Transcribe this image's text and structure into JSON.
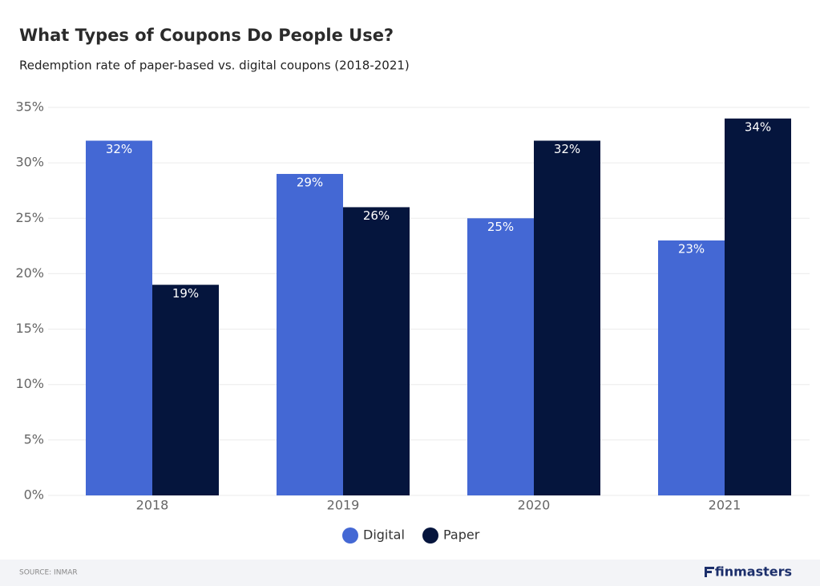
{
  "chart_data": {
    "type": "bar",
    "title": "What Types of Coupons Do People Use?",
    "subtitle": "Redemption rate of paper-based vs. digital coupons (2018-2021)",
    "categories": [
      "2018",
      "2019",
      "2020",
      "2021"
    ],
    "series": [
      {
        "name": "Digital",
        "color": "#4468d4",
        "values": [
          32,
          29,
          25,
          23
        ],
        "value_labels": [
          "32%",
          "29%",
          "25%",
          "23%"
        ]
      },
      {
        "name": "Paper",
        "color": "#05153d",
        "values": [
          19,
          26,
          32,
          34
        ],
        "value_labels": [
          "19%",
          "26%",
          "32%",
          "34%"
        ]
      }
    ],
    "ylim": [
      0,
      35
    ],
    "yticks": [
      {
        "value": 0,
        "label": "0%"
      },
      {
        "value": 5,
        "label": "5%"
      },
      {
        "value": 10,
        "label": "10%"
      },
      {
        "value": 15,
        "label": "15%"
      },
      {
        "value": 20,
        "label": "20%"
      },
      {
        "value": 25,
        "label": "25%"
      },
      {
        "value": 30,
        "label": "30%"
      },
      {
        "value": 35,
        "label": "35%"
      }
    ],
    "grid": true,
    "legend": "bottom"
  },
  "footer": {
    "source": "SOURCE: INMAR",
    "brand": "finmasters"
  }
}
